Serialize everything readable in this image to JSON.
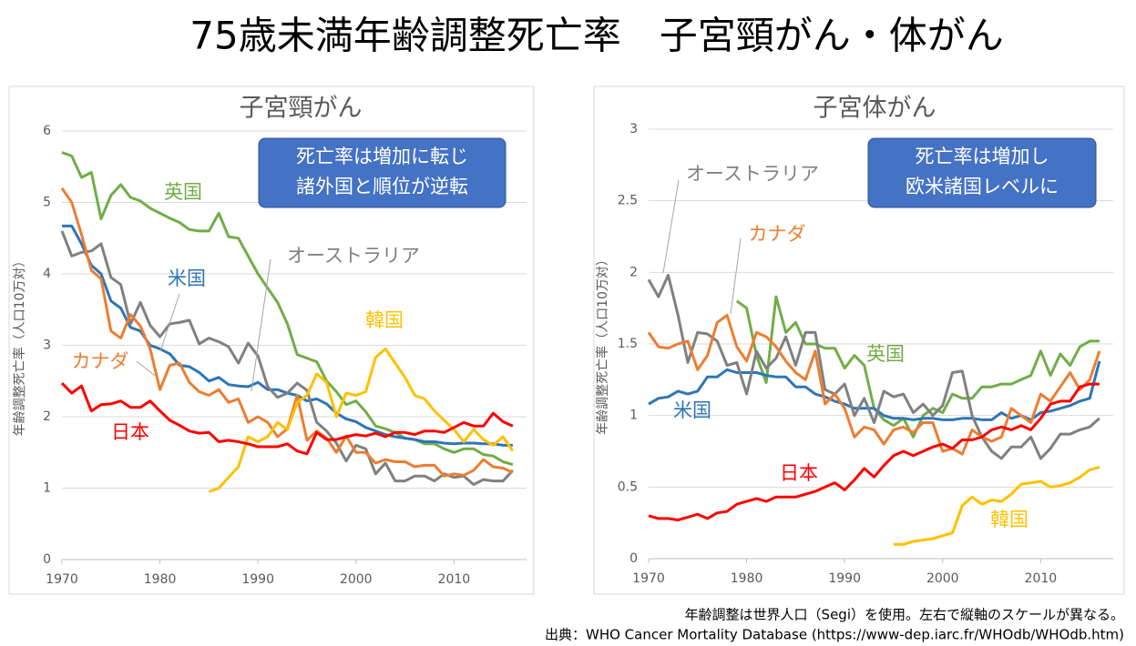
{
  "title": "75歳未満年齢調整死亡率　子宮頸がん・体がん",
  "notes": [
    "年齢調整は世界人口（Segi）を使用。左右で縦軸のスケールが異なる。",
    "出典：WHO Cancer Mortality Database (https://www-dep.iarc.fr/WHOdb/WHOdb.htm)"
  ],
  "chart_data": [
    {
      "type": "line",
      "title": "子宮頸がん",
      "ylabel": "年齢調整死亡率（人口10万対）",
      "annotation": [
        "死亡率は増加に転じ",
        "諸外国と順位が逆転"
      ],
      "x": [
        1970,
        1971,
        1972,
        1973,
        1974,
        1975,
        1976,
        1977,
        1978,
        1979,
        1980,
        1981,
        1982,
        1983,
        1984,
        1985,
        1986,
        1987,
        1988,
        1989,
        1990,
        1991,
        1992,
        1993,
        1994,
        1995,
        1996,
        1997,
        1998,
        1999,
        2000,
        2001,
        2002,
        2003,
        2004,
        2005,
        2006,
        2007,
        2008,
        2009,
        2010,
        2011,
        2012,
        2013,
        2014,
        2015,
        2016
      ],
      "xlim": [
        1970,
        2017.4
      ],
      "xticks": [
        1970,
        1980,
        1990,
        2000,
        2010
      ],
      "ylim": [
        0,
        6
      ],
      "yticks": [
        0,
        1,
        2,
        3,
        4,
        5,
        6
      ],
      "grid": true,
      "series": [
        {
          "name": "英国",
          "color": "#70ad47",
          "values": [
            5.7,
            5.65,
            5.35,
            5.42,
            4.77,
            5.1,
            5.25,
            5.07,
            5.02,
            4.92,
            4.85,
            4.78,
            4.72,
            4.62,
            4.6,
            4.6,
            4.85,
            4.52,
            4.5,
            4.25,
            4.0,
            3.8,
            3.6,
            3.3,
            2.87,
            2.82,
            2.77,
            2.5,
            2.35,
            2.17,
            2.22,
            2.07,
            1.87,
            1.83,
            1.78,
            1.7,
            1.68,
            1.62,
            1.62,
            1.55,
            1.5,
            1.55,
            1.55,
            1.47,
            1.45,
            1.37,
            1.33
          ]
        },
        {
          "name": "米国",
          "color": "#2e75b6",
          "values": [
            4.67,
            4.67,
            4.42,
            4.12,
            4.0,
            3.62,
            3.52,
            3.25,
            3.2,
            3.0,
            2.95,
            2.88,
            2.72,
            2.7,
            2.62,
            2.5,
            2.55,
            2.45,
            2.43,
            2.42,
            2.48,
            2.38,
            2.38,
            2.33,
            2.3,
            2.22,
            2.25,
            2.18,
            2.05,
            1.97,
            1.93,
            1.85,
            1.8,
            1.75,
            1.72,
            1.7,
            1.68,
            1.65,
            1.65,
            1.63,
            1.62,
            1.63,
            1.63,
            1.62,
            1.62,
            1.6,
            1.6
          ]
        },
        {
          "name": "オーストラリア",
          "color": "#808080",
          "values": [
            4.6,
            4.25,
            4.3,
            4.32,
            4.42,
            3.95,
            3.85,
            3.3,
            3.6,
            3.28,
            3.12,
            3.3,
            3.32,
            3.35,
            3.02,
            3.1,
            3.05,
            2.98,
            2.75,
            3.03,
            2.85,
            2.42,
            2.27,
            2.33,
            2.47,
            2.37,
            1.92,
            1.8,
            1.63,
            1.38,
            1.6,
            1.55,
            1.2,
            1.35,
            1.1,
            1.1,
            1.17,
            1.17,
            1.1,
            1.2,
            1.15,
            1.17,
            1.05,
            1.12,
            1.1,
            1.1,
            1.25
          ]
        },
        {
          "name": "カナダ",
          "color": "#ed7d31",
          "values": [
            5.2,
            5.0,
            4.55,
            4.05,
            3.93,
            3.2,
            3.1,
            3.43,
            3.27,
            2.95,
            2.38,
            2.72,
            2.75,
            2.48,
            2.35,
            2.3,
            2.38,
            2.2,
            2.25,
            1.92,
            2.0,
            1.92,
            1.72,
            1.83,
            2.3,
            1.67,
            1.8,
            1.7,
            1.5,
            1.73,
            1.5,
            1.5,
            1.35,
            1.4,
            1.37,
            1.37,
            1.3,
            1.32,
            1.32,
            1.17,
            1.2,
            1.18,
            1.25,
            1.4,
            1.3,
            1.28,
            1.22
          ]
        },
        {
          "name": "韓国",
          "color": "#ffc000",
          "values": [
            null,
            null,
            null,
            null,
            null,
            null,
            null,
            null,
            null,
            null,
            null,
            null,
            null,
            null,
            null,
            0.95,
            1.0,
            1.15,
            1.3,
            1.72,
            1.65,
            1.72,
            1.92,
            1.82,
            2.2,
            2.3,
            2.6,
            2.48,
            2.0,
            2.33,
            2.3,
            2.35,
            2.83,
            2.95,
            2.75,
            2.55,
            2.3,
            2.25,
            2.08,
            1.95,
            1.82,
            1.65,
            1.82,
            1.68,
            1.6,
            1.72,
            1.52
          ]
        },
        {
          "name": "日本",
          "color": "#ff0000",
          "values": [
            2.47,
            2.33,
            2.43,
            2.08,
            2.17,
            2.18,
            2.22,
            2.13,
            2.13,
            2.22,
            2.08,
            1.95,
            1.88,
            1.8,
            1.77,
            1.78,
            1.65,
            1.67,
            1.65,
            1.62,
            1.58,
            1.58,
            1.58,
            1.62,
            1.52,
            1.48,
            1.78,
            1.68,
            1.68,
            1.72,
            1.75,
            1.73,
            1.77,
            1.72,
            1.78,
            1.78,
            1.75,
            1.8,
            1.8,
            1.78,
            1.85,
            1.92,
            1.87,
            1.87,
            2.05,
            1.93,
            1.87
          ]
        }
      ]
    },
    {
      "type": "line",
      "title": "子宮体がん",
      "ylabel": "年齢調整死亡率（人口10万対）",
      "annotation": [
        "死亡率は増加し",
        "欧米諸国レベルに"
      ],
      "x": [
        1970,
        1971,
        1972,
        1973,
        1974,
        1975,
        1976,
        1977,
        1978,
        1979,
        1980,
        1981,
        1982,
        1983,
        1984,
        1985,
        1986,
        1987,
        1988,
        1989,
        1990,
        1991,
        1992,
        1993,
        1994,
        1995,
        1996,
        1997,
        1998,
        1999,
        2000,
        2001,
        2002,
        2003,
        2004,
        2005,
        2006,
        2007,
        2008,
        2009,
        2010,
        2011,
        2012,
        2013,
        2014,
        2015,
        2016
      ],
      "xlim": [
        1970,
        2017.4
      ],
      "xticks": [
        1970,
        1980,
        1990,
        2000,
        2010
      ],
      "ylim": [
        0,
        3
      ],
      "yticks": [
        0,
        0.5,
        1,
        1.5,
        2,
        2.5,
        3
      ],
      "grid": true,
      "series": [
        {
          "name": "英国",
          "color": "#70ad47",
          "values": [
            null,
            null,
            null,
            null,
            null,
            null,
            null,
            null,
            null,
            1.8,
            1.75,
            1.42,
            1.23,
            1.83,
            1.58,
            1.65,
            1.5,
            1.5,
            1.47,
            1.47,
            1.33,
            1.42,
            1.35,
            1.05,
            0.97,
            0.93,
            0.98,
            0.85,
            1.0,
            1.05,
            1.02,
            1.15,
            1.12,
            1.12,
            1.2,
            1.2,
            1.22,
            1.22,
            1.25,
            1.28,
            1.45,
            1.28,
            1.43,
            1.35,
            1.48,
            1.52,
            1.52
          ]
        },
        {
          "name": "米国",
          "color": "#2e75b6",
          "values": [
            1.08,
            1.12,
            1.13,
            1.17,
            1.15,
            1.17,
            1.27,
            1.27,
            1.32,
            1.3,
            1.3,
            1.3,
            1.28,
            1.27,
            1.27,
            1.2,
            1.2,
            1.15,
            1.13,
            1.1,
            1.08,
            1.05,
            1.05,
            1.05,
            1.0,
            0.98,
            0.98,
            0.97,
            0.98,
            0.98,
            0.97,
            0.97,
            0.98,
            0.98,
            0.97,
            0.97,
            1.02,
            0.98,
            1.0,
            0.97,
            1.02,
            1.03,
            1.05,
            1.07,
            1.1,
            1.12,
            1.38
          ]
        },
        {
          "name": "オーストラリア",
          "color": "#808080",
          "values": [
            1.95,
            1.83,
            1.98,
            1.7,
            1.37,
            1.58,
            1.57,
            1.52,
            1.35,
            1.37,
            1.15,
            1.45,
            1.33,
            1.4,
            1.55,
            1.35,
            1.58,
            1.58,
            1.18,
            1.15,
            1.22,
            1.0,
            1.12,
            0.95,
            1.17,
            1.13,
            1.15,
            1.02,
            1.08,
            1.0,
            1.07,
            1.3,
            1.31,
            1.0,
            0.85,
            0.75,
            0.7,
            0.78,
            0.78,
            0.85,
            0.7,
            0.77,
            0.87,
            0.87,
            0.9,
            0.92,
            0.98
          ]
        },
        {
          "name": "カナダ",
          "color": "#ed7d31",
          "values": [
            1.58,
            1.48,
            1.47,
            1.5,
            1.52,
            1.32,
            1.42,
            1.65,
            1.7,
            1.48,
            1.38,
            1.58,
            1.55,
            1.48,
            1.38,
            1.3,
            1.25,
            1.45,
            1.08,
            1.15,
            1.05,
            0.85,
            0.92,
            0.9,
            0.8,
            0.9,
            0.92,
            0.88,
            0.95,
            0.95,
            0.75,
            0.77,
            0.73,
            0.9,
            0.85,
            0.82,
            0.85,
            1.05,
            1.0,
            0.95,
            1.15,
            1.1,
            1.2,
            1.3,
            1.18,
            1.25,
            1.45
          ]
        },
        {
          "name": "韓国",
          "color": "#ffc000",
          "values": [
            null,
            null,
            null,
            null,
            null,
            null,
            null,
            null,
            null,
            null,
            null,
            null,
            null,
            null,
            null,
            null,
            null,
            null,
            null,
            null,
            null,
            null,
            null,
            null,
            null,
            0.1,
            0.1,
            0.12,
            0.13,
            0.14,
            0.16,
            0.18,
            0.37,
            0.43,
            0.38,
            0.41,
            0.4,
            0.45,
            0.52,
            0.53,
            0.54,
            0.5,
            0.51,
            0.53,
            0.57,
            0.62,
            0.64
          ]
        },
        {
          "name": "日本",
          "color": "#ff0000",
          "values": [
            0.3,
            0.28,
            0.28,
            0.27,
            0.29,
            0.31,
            0.28,
            0.32,
            0.33,
            0.38,
            0.4,
            0.42,
            0.4,
            0.43,
            0.43,
            0.43,
            0.45,
            0.47,
            0.5,
            0.53,
            0.48,
            0.55,
            0.63,
            0.57,
            0.65,
            0.72,
            0.75,
            0.72,
            0.75,
            0.78,
            0.8,
            0.77,
            0.83,
            0.83,
            0.85,
            0.9,
            0.92,
            0.9,
            0.93,
            0.9,
            0.98,
            1.08,
            1.1,
            1.1,
            1.2,
            1.22,
            1.22
          ]
        }
      ]
    }
  ]
}
